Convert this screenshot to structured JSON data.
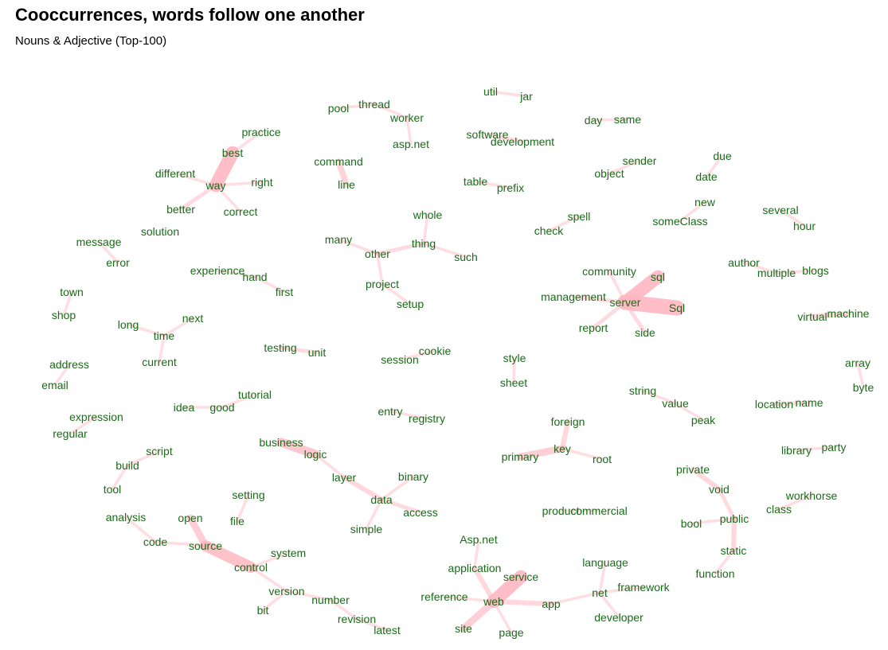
{
  "title": "Cooccurrences, words follow one another",
  "subtitle": "Nouns & Adjective (Top-100)",
  "colors": {
    "edge": "#ffb6c1",
    "word": "#1a6b1a",
    "title": "#000000"
  },
  "nodes": [
    {
      "id": "util",
      "label": "util"
    },
    {
      "id": "jar",
      "label": "jar"
    },
    {
      "id": "pool",
      "label": "pool"
    },
    {
      "id": "thread",
      "label": "thread"
    },
    {
      "id": "worker",
      "label": "worker"
    },
    {
      "id": "aspnet",
      "label": "asp.net"
    },
    {
      "id": "software",
      "label": "software"
    },
    {
      "id": "development",
      "label": "development"
    },
    {
      "id": "day",
      "label": "day"
    },
    {
      "id": "same",
      "label": "same"
    },
    {
      "id": "practice",
      "label": "practice"
    },
    {
      "id": "best",
      "label": "best"
    },
    {
      "id": "different",
      "label": "different"
    },
    {
      "id": "way",
      "label": "way"
    },
    {
      "id": "right",
      "label": "right"
    },
    {
      "id": "better",
      "label": "better"
    },
    {
      "id": "correct",
      "label": "correct"
    },
    {
      "id": "command",
      "label": "command"
    },
    {
      "id": "line",
      "label": "line"
    },
    {
      "id": "sender",
      "label": "sender"
    },
    {
      "id": "object",
      "label": "object"
    },
    {
      "id": "due",
      "label": "due"
    },
    {
      "id": "date",
      "label": "date"
    },
    {
      "id": "new",
      "label": "new"
    },
    {
      "id": "someClass",
      "label": "someClass"
    },
    {
      "id": "table",
      "label": "table"
    },
    {
      "id": "prefix",
      "label": "prefix"
    },
    {
      "id": "several",
      "label": "several"
    },
    {
      "id": "hour",
      "label": "hour"
    },
    {
      "id": "whole",
      "label": "whole"
    },
    {
      "id": "thing",
      "label": "thing"
    },
    {
      "id": "such",
      "label": "such"
    },
    {
      "id": "many",
      "label": "many"
    },
    {
      "id": "other",
      "label": "other"
    },
    {
      "id": "project",
      "label": "project"
    },
    {
      "id": "setup",
      "label": "setup"
    },
    {
      "id": "spell",
      "label": "spell"
    },
    {
      "id": "check",
      "label": "check"
    },
    {
      "id": "message",
      "label": "message"
    },
    {
      "id": "error",
      "label": "error"
    },
    {
      "id": "solution",
      "label": "solution"
    },
    {
      "id": "experience",
      "label": "experience"
    },
    {
      "id": "hand",
      "label": "hand"
    },
    {
      "id": "first",
      "label": "first"
    },
    {
      "id": "community",
      "label": "community"
    },
    {
      "id": "sql",
      "label": "sql"
    },
    {
      "id": "management",
      "label": "management"
    },
    {
      "id": "server",
      "label": "server"
    },
    {
      "id": "Sql",
      "label": "Sql"
    },
    {
      "id": "report",
      "label": "report"
    },
    {
      "id": "side",
      "label": "side"
    },
    {
      "id": "author",
      "label": "author"
    },
    {
      "id": "multiple",
      "label": "multiple"
    },
    {
      "id": "blogs",
      "label": "blogs"
    },
    {
      "id": "town",
      "label": "town"
    },
    {
      "id": "shop",
      "label": "shop"
    },
    {
      "id": "long",
      "label": "long"
    },
    {
      "id": "time",
      "label": "time"
    },
    {
      "id": "next",
      "label": "next"
    },
    {
      "id": "current",
      "label": "current"
    },
    {
      "id": "virtual",
      "label": "virtual"
    },
    {
      "id": "machine",
      "label": "machine"
    },
    {
      "id": "testing",
      "label": "testing"
    },
    {
      "id": "unit",
      "label": "unit"
    },
    {
      "id": "session",
      "label": "session"
    },
    {
      "id": "cookie",
      "label": "cookie"
    },
    {
      "id": "style",
      "label": "style"
    },
    {
      "id": "sheet",
      "label": "sheet"
    },
    {
      "id": "address",
      "label": "address"
    },
    {
      "id": "email",
      "label": "email"
    },
    {
      "id": "array",
      "label": "array"
    },
    {
      "id": "byte",
      "label": "byte"
    },
    {
      "id": "tutorial",
      "label": "tutorial"
    },
    {
      "id": "idea",
      "label": "idea"
    },
    {
      "id": "good",
      "label": "good"
    },
    {
      "id": "string",
      "label": "string"
    },
    {
      "id": "value",
      "label": "value"
    },
    {
      "id": "peak",
      "label": "peak"
    },
    {
      "id": "location",
      "label": "location"
    },
    {
      "id": "name",
      "label": "name"
    },
    {
      "id": "expression",
      "label": "expression"
    },
    {
      "id": "regular",
      "label": "regular"
    },
    {
      "id": "entry",
      "label": "entry"
    },
    {
      "id": "registry",
      "label": "registry"
    },
    {
      "id": "foreign",
      "label": "foreign"
    },
    {
      "id": "key",
      "label": "key"
    },
    {
      "id": "primary",
      "label": "primary"
    },
    {
      "id": "root",
      "label": "root"
    },
    {
      "id": "business",
      "label": "business"
    },
    {
      "id": "logic",
      "label": "logic"
    },
    {
      "id": "library",
      "label": "library"
    },
    {
      "id": "party",
      "label": "party"
    },
    {
      "id": "script",
      "label": "script"
    },
    {
      "id": "build",
      "label": "build"
    },
    {
      "id": "tool",
      "label": "tool"
    },
    {
      "id": "layer",
      "label": "layer"
    },
    {
      "id": "binary",
      "label": "binary"
    },
    {
      "id": "data",
      "label": "data"
    },
    {
      "id": "access",
      "label": "access"
    },
    {
      "id": "simple",
      "label": "simple"
    },
    {
      "id": "private",
      "label": "private"
    },
    {
      "id": "void",
      "label": "void"
    },
    {
      "id": "public",
      "label": "public"
    },
    {
      "id": "bool",
      "label": "bool"
    },
    {
      "id": "static",
      "label": "static"
    },
    {
      "id": "function",
      "label": "function"
    },
    {
      "id": "setting",
      "label": "setting"
    },
    {
      "id": "file",
      "label": "file"
    },
    {
      "id": "workhorse",
      "label": "workhorse"
    },
    {
      "id": "class",
      "label": "class"
    },
    {
      "id": "product",
      "label": "product"
    },
    {
      "id": "commercial",
      "label": "commercial"
    },
    {
      "id": "analysis",
      "label": "analysis"
    },
    {
      "id": "code",
      "label": "code"
    },
    {
      "id": "open",
      "label": "open"
    },
    {
      "id": "source",
      "label": "source"
    },
    {
      "id": "system",
      "label": "system"
    },
    {
      "id": "control",
      "label": "control"
    },
    {
      "id": "version",
      "label": "version"
    },
    {
      "id": "bit",
      "label": "bit"
    },
    {
      "id": "number",
      "label": "number"
    },
    {
      "id": "revision",
      "label": "revision"
    },
    {
      "id": "latest",
      "label": "latest"
    },
    {
      "id": "Aspnet",
      "label": "Asp.net"
    },
    {
      "id": "application",
      "label": "application"
    },
    {
      "id": "service",
      "label": "service"
    },
    {
      "id": "web",
      "label": "web"
    },
    {
      "id": "reference",
      "label": "reference"
    },
    {
      "id": "app",
      "label": "app"
    },
    {
      "id": "site",
      "label": "site"
    },
    {
      "id": "page",
      "label": "page"
    },
    {
      "id": "language",
      "label": "language"
    },
    {
      "id": "framework",
      "label": "framework"
    },
    {
      "id": "net",
      "label": "net"
    },
    {
      "id": "developer",
      "label": "developer"
    }
  ],
  "edges": [
    {
      "from": "util",
      "to": "jar",
      "weight": 1
    },
    {
      "from": "pool",
      "to": "thread",
      "weight": 1
    },
    {
      "from": "thread",
      "to": "worker",
      "weight": 1
    },
    {
      "from": "worker",
      "to": "aspnet",
      "weight": 1
    },
    {
      "from": "software",
      "to": "development",
      "weight": 1.5
    },
    {
      "from": "day",
      "to": "same",
      "weight": 1
    },
    {
      "from": "practice",
      "to": "best",
      "weight": 1
    },
    {
      "from": "best",
      "to": "way",
      "weight": 6
    },
    {
      "from": "different",
      "to": "way",
      "weight": 1
    },
    {
      "from": "right",
      "to": "way",
      "weight": 1
    },
    {
      "from": "better",
      "to": "way",
      "weight": 1.5
    },
    {
      "from": "correct",
      "to": "way",
      "weight": 1
    },
    {
      "from": "command",
      "to": "line",
      "weight": 2.5
    },
    {
      "from": "sender",
      "to": "object",
      "weight": 1
    },
    {
      "from": "due",
      "to": "date",
      "weight": 1
    },
    {
      "from": "new",
      "to": "someClass",
      "weight": 1
    },
    {
      "from": "table",
      "to": "prefix",
      "weight": 1
    },
    {
      "from": "several",
      "to": "hour",
      "weight": 1
    },
    {
      "from": "whole",
      "to": "thing",
      "weight": 1
    },
    {
      "from": "thing",
      "to": "such",
      "weight": 1
    },
    {
      "from": "other",
      "to": "thing",
      "weight": 1.5
    },
    {
      "from": "many",
      "to": "other",
      "weight": 1
    },
    {
      "from": "other",
      "to": "project",
      "weight": 1
    },
    {
      "from": "project",
      "to": "setup",
      "weight": 1
    },
    {
      "from": "spell",
      "to": "check",
      "weight": 1
    },
    {
      "from": "message",
      "to": "error",
      "weight": 1
    },
    {
      "from": "experience",
      "to": "hand",
      "weight": 1
    },
    {
      "from": "hand",
      "to": "first",
      "weight": 1
    },
    {
      "from": "community",
      "to": "server",
      "weight": 1
    },
    {
      "from": "server",
      "to": "sql",
      "weight": 6
    },
    {
      "from": "management",
      "to": "server",
      "weight": 1.5
    },
    {
      "from": "server",
      "to": "Sql",
      "weight": 7
    },
    {
      "from": "report",
      "to": "server",
      "weight": 1.5
    },
    {
      "from": "server",
      "to": "side",
      "weight": 1.5
    },
    {
      "from": "author",
      "to": "multiple",
      "weight": 1
    },
    {
      "from": "multiple",
      "to": "blogs",
      "weight": 1
    },
    {
      "from": "town",
      "to": "shop",
      "weight": 1
    },
    {
      "from": "long",
      "to": "time",
      "weight": 1
    },
    {
      "from": "time",
      "to": "next",
      "weight": 1
    },
    {
      "from": "time",
      "to": "current",
      "weight": 1
    },
    {
      "from": "virtual",
      "to": "machine",
      "weight": 2
    },
    {
      "from": "testing",
      "to": "unit",
      "weight": 1.5
    },
    {
      "from": "session",
      "to": "cookie",
      "weight": 1
    },
    {
      "from": "style",
      "to": "sheet",
      "weight": 1
    },
    {
      "from": "address",
      "to": "email",
      "weight": 1
    },
    {
      "from": "array",
      "to": "byte",
      "weight": 1
    },
    {
      "from": "idea",
      "to": "good",
      "weight": 1
    },
    {
      "from": "good",
      "to": "tutorial",
      "weight": 1
    },
    {
      "from": "string",
      "to": "value",
      "weight": 1
    },
    {
      "from": "value",
      "to": "peak",
      "weight": 1
    },
    {
      "from": "location",
      "to": "name",
      "weight": 1.5
    },
    {
      "from": "expression",
      "to": "regular",
      "weight": 1
    },
    {
      "from": "entry",
      "to": "registry",
      "weight": 1
    },
    {
      "from": "foreign",
      "to": "key",
      "weight": 2
    },
    {
      "from": "primary",
      "to": "key",
      "weight": 3
    },
    {
      "from": "key",
      "to": "root",
      "weight": 1
    },
    {
      "from": "business",
      "to": "logic",
      "weight": 4
    },
    {
      "from": "logic",
      "to": "layer",
      "weight": 1
    },
    {
      "from": "library",
      "to": "party",
      "weight": 1
    },
    {
      "from": "script",
      "to": "build",
      "weight": 1
    },
    {
      "from": "build",
      "to": "tool",
      "weight": 1
    },
    {
      "from": "layer",
      "to": "data",
      "weight": 2
    },
    {
      "from": "binary",
      "to": "data",
      "weight": 1
    },
    {
      "from": "data",
      "to": "access",
      "weight": 1.5
    },
    {
      "from": "simple",
      "to": "data",
      "weight": 1
    },
    {
      "from": "private",
      "to": "void",
      "weight": 2
    },
    {
      "from": "void",
      "to": "public",
      "weight": 1.5
    },
    {
      "from": "bool",
      "to": "public",
      "weight": 1
    },
    {
      "from": "public",
      "to": "static",
      "weight": 2
    },
    {
      "from": "static",
      "to": "function",
      "weight": 1
    },
    {
      "from": "setting",
      "to": "file",
      "weight": 1
    },
    {
      "from": "workhorse",
      "to": "class",
      "weight": 1
    },
    {
      "from": "product",
      "to": "commercial",
      "weight": 1
    },
    {
      "from": "analysis",
      "to": "code",
      "weight": 1
    },
    {
      "from": "open",
      "to": "source",
      "weight": 3
    },
    {
      "from": "source",
      "to": "control",
      "weight": 5
    },
    {
      "from": "system",
      "to": "control",
      "weight": 1
    },
    {
      "from": "code",
      "to": "source",
      "weight": 1
    },
    {
      "from": "version",
      "to": "control",
      "weight": 1
    },
    {
      "from": "version",
      "to": "number",
      "weight": 1
    },
    {
      "from": "bit",
      "to": "version",
      "weight": 1
    },
    {
      "from": "number",
      "to": "revision",
      "weight": 1
    },
    {
      "from": "revision",
      "to": "latest",
      "weight": 1
    },
    {
      "from": "Aspnet",
      "to": "application",
      "weight": 1
    },
    {
      "from": "application",
      "to": "web",
      "weight": 2
    },
    {
      "from": "web",
      "to": "service",
      "weight": 6
    },
    {
      "from": "reference",
      "to": "web",
      "weight": 1
    },
    {
      "from": "web",
      "to": "app",
      "weight": 2
    },
    {
      "from": "web",
      "to": "site",
      "weight": 3
    },
    {
      "from": "web",
      "to": "page",
      "weight": 1
    },
    {
      "from": "app",
      "to": "net",
      "weight": 1
    },
    {
      "from": "language",
      "to": "net",
      "weight": 1
    },
    {
      "from": "framework",
      "to": "net",
      "weight": 1
    },
    {
      "from": "net",
      "to": "developer",
      "weight": 1
    }
  ]
}
